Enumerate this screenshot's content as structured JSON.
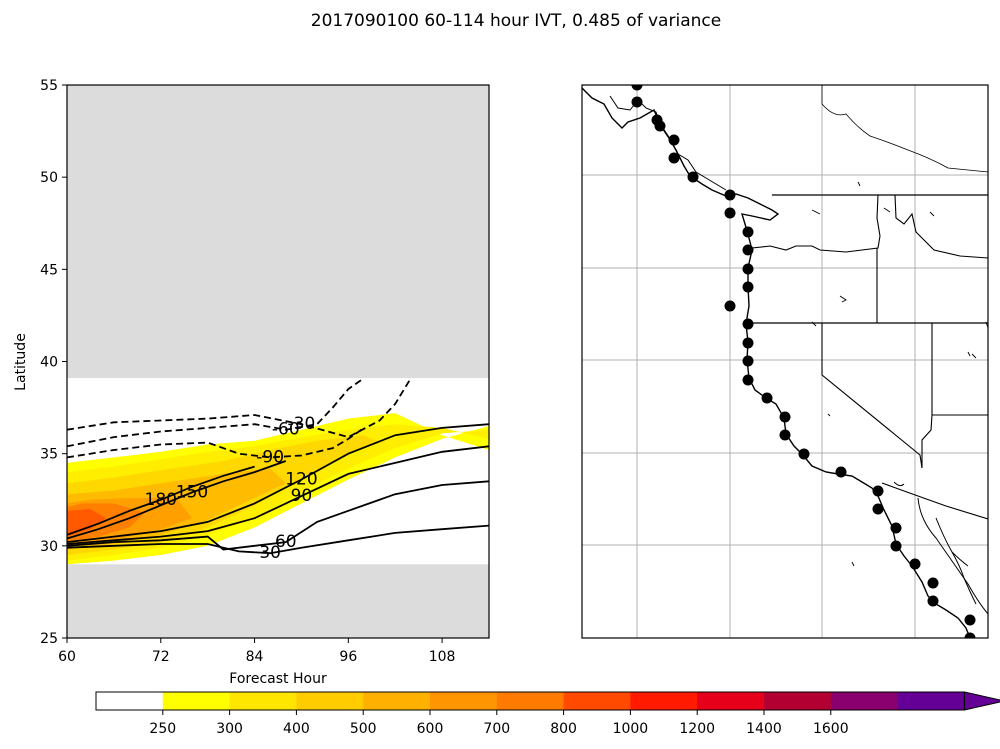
{
  "figure": {
    "title": "2017090100 60-114 hour IVT, 0.485 of variance"
  },
  "chart_data": [
    {
      "type": "contour",
      "xlabel": "Forecast Hour",
      "ylabel": "Latitude",
      "xlim": [
        60,
        114
      ],
      "ylim": [
        25,
        55
      ],
      "xticks": [
        60,
        72,
        84,
        96,
        108
      ],
      "yticks": [
        25,
        30,
        35,
        40,
        45,
        50,
        55
      ],
      "masked_regions": [
        [
          39.1,
          55
        ],
        [
          25,
          29.0
        ]
      ],
      "filled_field": {
        "name": "IVT",
        "bands": [
          {
            "level": 250,
            "polygon": [
              [
                60,
                29.0
              ],
              [
                66,
                29.2
              ],
              [
                72,
                29.5
              ],
              [
                78,
                30.0
              ],
              [
                84,
                31.0
              ],
              [
                90,
                32.3
              ],
              [
                96,
                33.6
              ],
              [
                102,
                34.8
              ],
              [
                108,
                35.8
              ],
              [
                114,
                36.5
              ],
              [
                114,
                35.2
              ],
              [
                108,
                36.0
              ],
              [
                102,
                37.2
              ],
              [
                96,
                36.9
              ],
              [
                90,
                36.3
              ],
              [
                84,
                35.7
              ],
              [
                78,
                35.5
              ],
              [
                72,
                35.1
              ],
              [
                66,
                34.8
              ],
              [
                60,
                34.5
              ]
            ]
          },
          {
            "level": 300,
            "polygon": [
              [
                60,
                29.2
              ],
              [
                66,
                29.5
              ],
              [
                72,
                29.9
              ],
              [
                78,
                30.6
              ],
              [
                84,
                31.5
              ],
              [
                90,
                32.9
              ],
              [
                96,
                34.2
              ],
              [
                102,
                35.3
              ],
              [
                108,
                36.1
              ],
              [
                114,
                36.3
              ],
              [
                114,
                35.8
              ],
              [
                108,
                36.4
              ],
              [
                102,
                36.6
              ],
              [
                96,
                36.3
              ],
              [
                90,
                35.9
              ],
              [
                84,
                35.4
              ],
              [
                78,
                35.1
              ],
              [
                72,
                34.7
              ],
              [
                66,
                34.3
              ],
              [
                60,
                34.0
              ]
            ]
          },
          {
            "level": 400,
            "polygon": [
              [
                60,
                29.5
              ],
              [
                66,
                29.8
              ],
              [
                72,
                30.2
              ],
              [
                78,
                31.0
              ],
              [
                84,
                32.2
              ],
              [
                90,
                33.7
              ],
              [
                96,
                35.0
              ],
              [
                100,
                35.6
              ],
              [
                98,
                36.0
              ],
              [
                92,
                35.7
              ],
              [
                86,
                35.2
              ],
              [
                80,
                34.6
              ],
              [
                72,
                34.1
              ],
              [
                66,
                33.7
              ],
              [
                60,
                33.4
              ]
            ]
          },
          {
            "level": 500,
            "polygon": [
              [
                60,
                29.8
              ],
              [
                66,
                30.1
              ],
              [
                72,
                30.6
              ],
              [
                78,
                31.4
              ],
              [
                84,
                32.6
              ],
              [
                88,
                33.4
              ],
              [
                86,
                34.2
              ],
              [
                80,
                33.9
              ],
              [
                72,
                33.4
              ],
              [
                66,
                33.0
              ],
              [
                60,
                32.8
              ]
            ]
          },
          {
            "level": 600,
            "polygon": [
              [
                60,
                30.0
              ],
              [
                66,
                30.3
              ],
              [
                72,
                30.9
              ],
              [
                76,
                31.5
              ],
              [
                74,
                32.6
              ],
              [
                68,
                32.6
              ],
              [
                63,
                32.5
              ],
              [
                60,
                32.3
              ]
            ]
          },
          {
            "level": 700,
            "polygon": [
              [
                60,
                30.2
              ],
              [
                64,
                30.5
              ],
              [
                68,
                31.0
              ],
              [
                70,
                31.8
              ],
              [
                66,
                32.3
              ],
              [
                62,
                32.3
              ],
              [
                60,
                32.1
              ]
            ]
          },
          {
            "level": 800,
            "polygon": [
              [
                60,
                30.5
              ],
              [
                63,
                30.9
              ],
              [
                65,
                31.5
              ],
              [
                63,
                32.0
              ],
              [
                60,
                31.9
              ]
            ]
          }
        ]
      },
      "contours": [
        {
          "level": 30,
          "label": "30",
          "dashed": false,
          "points": [
            [
              60,
              29.9
            ],
            [
              66,
              30.0
            ],
            [
              72,
              30.1
            ],
            [
              78,
              30.1
            ],
            [
              82,
              29.7
            ],
            [
              86,
              29.6
            ],
            [
              90,
              29.9
            ],
            [
              96,
              30.3
            ],
            [
              102,
              30.7
            ],
            [
              108,
              30.9
            ],
            [
              114,
              31.1
            ]
          ]
        },
        {
          "level": 60,
          "label": "60",
          "dashed": false,
          "points": [
            [
              60,
              30.0
            ],
            [
              66,
              30.2
            ],
            [
              72,
              30.3
            ],
            [
              78,
              30.5
            ],
            [
              80,
              29.8
            ],
            [
              84,
              30.0
            ],
            [
              88,
              30.2
            ],
            [
              92,
              31.3
            ],
            [
              96,
              31.9
            ],
            [
              102,
              32.8
            ],
            [
              108,
              33.3
            ],
            [
              114,
              33.5
            ]
          ]
        },
        {
          "level": 90,
          "label": "90",
          "dashed": false,
          "points": [
            [
              60,
              30.1
            ],
            [
              66,
              30.3
            ],
            [
              72,
              30.5
            ],
            [
              78,
              30.8
            ],
            [
              84,
              31.5
            ],
            [
              90,
              32.7
            ],
            [
              96,
              33.9
            ],
            [
              102,
              34.5
            ],
            [
              108,
              35.1
            ],
            [
              114,
              35.4
            ]
          ]
        },
        {
          "level": 120,
          "label": "120",
          "dashed": false,
          "points": [
            [
              60,
              30.2
            ],
            [
              66,
              30.5
            ],
            [
              72,
              30.8
            ],
            [
              78,
              31.3
            ],
            [
              84,
              32.3
            ],
            [
              90,
              33.6
            ],
            [
              96,
              35.0
            ],
            [
              102,
              36.0
            ],
            [
              108,
              36.4
            ],
            [
              114,
              36.6
            ]
          ]
        },
        {
          "level": 150,
          "label": "150",
          "dashed": false,
          "points": [
            [
              60,
              30.4
            ],
            [
              64,
              30.9
            ],
            [
              68,
              31.5
            ],
            [
              72,
              32.2
            ],
            [
              76,
              32.9
            ],
            [
              80,
              33.5
            ],
            [
              84,
              34.0
            ],
            [
              88,
              34.6
            ]
          ]
        },
        {
          "level": 180,
          "label": "180",
          "dashed": false,
          "points": [
            [
              60,
              30.6
            ],
            [
              64,
              31.2
            ],
            [
              68,
              31.9
            ],
            [
              72,
              32.5
            ],
            [
              76,
              33.2
            ],
            [
              80,
              33.8
            ],
            [
              84,
              34.3
            ]
          ]
        },
        {
          "level": -30,
          "label": "-30",
          "dashed": true,
          "points": [
            [
              60,
              36.3
            ],
            [
              66,
              36.7
            ],
            [
              72,
              36.8
            ],
            [
              78,
              36.9
            ],
            [
              84,
              37.1
            ],
            [
              90,
              36.6
            ],
            [
              96,
              35.9
            ],
            [
              100,
              36.8
            ],
            [
              102,
              37.7
            ],
            [
              104,
              39.1
            ]
          ]
        },
        {
          "level": -60,
          "label": "-60",
          "dashed": true,
          "points": [
            [
              60,
              35.4
            ],
            [
              66,
              35.9
            ],
            [
              72,
              36.2
            ],
            [
              78,
              36.4
            ],
            [
              84,
              36.6
            ],
            [
              88,
              36.3
            ],
            [
              92,
              36.6
            ],
            [
              94,
              37.5
            ],
            [
              96,
              38.5
            ],
            [
              98,
              39.1
            ]
          ]
        },
        {
          "level": -90,
          "label": "-90",
          "dashed": true,
          "points": [
            [
              60,
              34.8
            ],
            [
              66,
              35.2
            ],
            [
              72,
              35.5
            ],
            [
              78,
              35.6
            ],
            [
              82,
              35.0
            ],
            [
              86,
              34.8
            ],
            [
              90,
              34.9
            ],
            [
              94,
              35.3
            ],
            [
              96,
              35.8
            ],
            [
              98,
              36.4
            ]
          ]
        }
      ]
    },
    {
      "type": "map",
      "region": "U.S. West Coast",
      "features": [
        "coastline",
        "state borders",
        "graticule",
        "station points"
      ]
    }
  ],
  "colorbar": {
    "ticks": [
      "250",
      "300",
      "400",
      "500",
      "600",
      "700",
      "800",
      "1000",
      "1200",
      "1400",
      "1600"
    ],
    "colors": [
      "#ffffff",
      "#ffff00",
      "#ffe600",
      "#ffcc00",
      "#ffb000",
      "#ff9500",
      "#ff7a00",
      "#ff4a00",
      "#ff1a00",
      "#e6001a",
      "#b30033",
      "#8a006e",
      "#640096"
    ]
  }
}
